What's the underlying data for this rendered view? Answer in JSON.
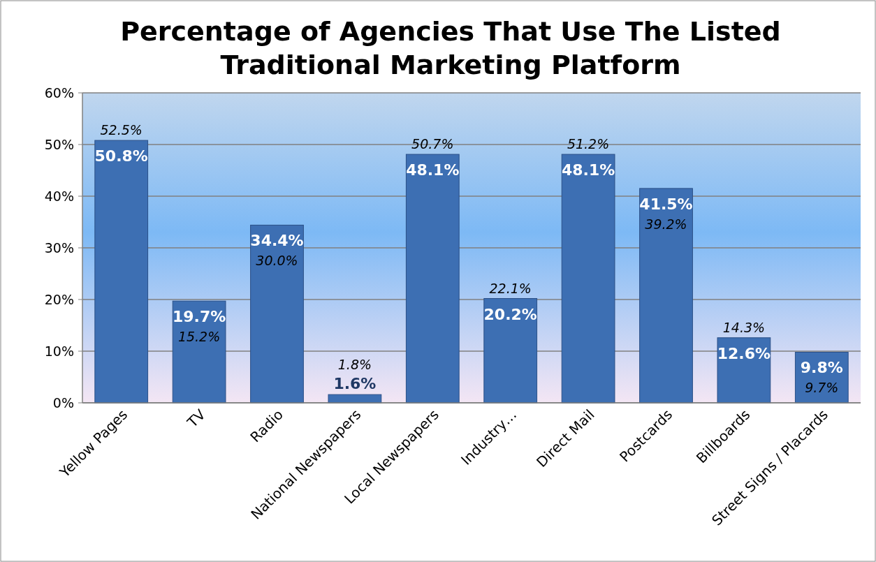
{
  "chart_data": {
    "type": "bar",
    "title": "Percentage of Agencies That Use The Listed Traditional Marketing Platform",
    "categories": [
      "Yellow Pages",
      "TV",
      "Radio",
      "National Newspapers",
      "Local Newspapers",
      "Industry…",
      "Direct Mail",
      "Postcards",
      "Billboards",
      "Street Signs / Placards"
    ],
    "values": [
      50.8,
      19.7,
      34.4,
      1.6,
      48.1,
      20.2,
      48.1,
      41.5,
      12.6,
      9.8
    ],
    "value_labels": [
      "50.8%",
      "19.7%",
      "34.4%",
      "1.6%",
      "48.1%",
      "20.2%",
      "48.1%",
      "41.5%",
      "12.6%",
      "9.8%"
    ],
    "color": "#3d6fb3",
    "ylim": [
      0,
      60
    ],
    "yticks": [
      {
        "value": 0,
        "label": "0%"
      },
      {
        "value": 10,
        "label": "10%"
      },
      {
        "value": 20,
        "label": "20%"
      },
      {
        "value": 30,
        "label": "30%"
      },
      {
        "value": 40,
        "label": "40%"
      },
      {
        "value": 50,
        "label": "50%"
      },
      {
        "value": 60,
        "label": "60%"
      }
    ],
    "grid": "y",
    "annotations": [
      "52.5%",
      "15.2%",
      "30.0%",
      "1.8%",
      "50.7%",
      "22.1%",
      "51.2%",
      "39.2%",
      "14.3%",
      "9.7%"
    ]
  }
}
